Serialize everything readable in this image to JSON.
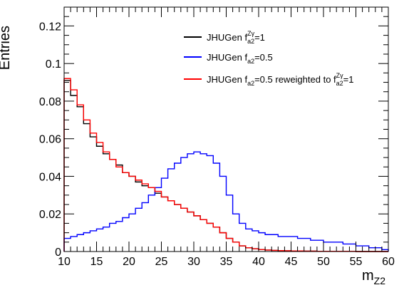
{
  "chart_data": {
    "type": "line",
    "drawstyle": "step",
    "title": "",
    "xlabel": "m",
    "xlabel_sub": "Z2",
    "ylabel": "Entries",
    "xlim": [
      10,
      60
    ],
    "ylim": [
      0,
      0.13
    ],
    "xticks": [
      10,
      15,
      20,
      25,
      30,
      35,
      40,
      45,
      50,
      55,
      60
    ],
    "xtick_labels": [
      "10",
      "15",
      "20",
      "25",
      "30",
      "35",
      "40",
      "45",
      "50",
      "55",
      "60"
    ],
    "yticks": [
      0,
      0.02,
      0.04,
      0.06,
      0.08,
      0.1,
      0.12
    ],
    "ytick_labels": [
      "0",
      "0.02",
      "0.04",
      "0.06",
      "0.08",
      "0.1",
      "0.12"
    ],
    "bin_edges": [
      10,
      11,
      12,
      13,
      14,
      15,
      16,
      17,
      18,
      19,
      20,
      21,
      22,
      23,
      24,
      25,
      26,
      27,
      28,
      29,
      30,
      31,
      32,
      33,
      34,
      35,
      36,
      37,
      38,
      39,
      40,
      41,
      42,
      43,
      44,
      45,
      46,
      47,
      48,
      49,
      50,
      51,
      52,
      53,
      54,
      55,
      56,
      57,
      58,
      59,
      60
    ],
    "grid": false,
    "legend_position": "top-right",
    "series": [
      {
        "id": "black",
        "color": "#000000",
        "label_parts": [
          {
            "text": "JHUGen f",
            "role": "base"
          },
          {
            "text": "Zγ",
            "role": "sup"
          },
          {
            "text": "a2",
            "role": "sub"
          },
          {
            "text": "=1",
            "role": "base"
          }
        ],
        "values": [
          0.091,
          0.083,
          0.077,
          0.068,
          0.061,
          0.056,
          0.052,
          0.049,
          0.046,
          0.042,
          0.04,
          0.037,
          0.035,
          0.034,
          0.031,
          0.029,
          0.027,
          0.025,
          0.023,
          0.021,
          0.019,
          0.017,
          0.015,
          0.013,
          0.01,
          0.007,
          0.005,
          0.003,
          0.002,
          0.0015,
          0.001,
          0.0008,
          0.0006,
          0.0005,
          0.0004,
          0.0003,
          0.0003,
          0.0002,
          0.0002,
          0.0001,
          0.0001,
          0.0001,
          0.0001,
          0.0001,
          0.0001,
          0.0,
          0.0,
          0.0,
          0.0,
          0.0
        ]
      },
      {
        "id": "blue",
        "color": "#0000ff",
        "label_parts": [
          {
            "text": "JHUGen f",
            "role": "base"
          },
          {
            "text": "a2",
            "role": "sub"
          },
          {
            "text": "=0.5",
            "role": "base"
          }
        ],
        "values": [
          0.007,
          0.008,
          0.009,
          0.01,
          0.011,
          0.012,
          0.013,
          0.015,
          0.016,
          0.018,
          0.02,
          0.023,
          0.026,
          0.03,
          0.034,
          0.039,
          0.044,
          0.047,
          0.05,
          0.052,
          0.053,
          0.052,
          0.051,
          0.047,
          0.04,
          0.03,
          0.02,
          0.015,
          0.012,
          0.011,
          0.01,
          0.009,
          0.009,
          0.008,
          0.008,
          0.008,
          0.007,
          0.007,
          0.006,
          0.006,
          0.005,
          0.005,
          0.005,
          0.004,
          0.004,
          0.003,
          0.003,
          0.002,
          0.002,
          0.001
        ]
      },
      {
        "id": "red",
        "color": "#ff0000",
        "label_parts": [
          {
            "text": "JHUGen f",
            "role": "base"
          },
          {
            "text": "a2",
            "role": "sub"
          },
          {
            "text": "=0.5 reweighted to f",
            "role": "base"
          },
          {
            "text": "Zγ",
            "role": "sup"
          },
          {
            "text": "a2",
            "role": "sub"
          },
          {
            "text": "=1",
            "role": "base"
          }
        ],
        "values": [
          0.092,
          0.086,
          0.078,
          0.07,
          0.063,
          0.058,
          0.053,
          0.049,
          0.045,
          0.042,
          0.04,
          0.038,
          0.036,
          0.034,
          0.032,
          0.029,
          0.027,
          0.025,
          0.023,
          0.021,
          0.019,
          0.017,
          0.015,
          0.013,
          0.01,
          0.007,
          0.005,
          0.003,
          0.002,
          0.0015,
          0.001,
          0.0008,
          0.0006,
          0.0005,
          0.0004,
          0.0003,
          0.0003,
          0.0002,
          0.0002,
          0.0001,
          0.0001,
          0.0001,
          0.0001,
          0.0001,
          0.0001,
          0.0,
          0.0,
          0.0,
          0.0,
          0.0
        ]
      }
    ]
  }
}
